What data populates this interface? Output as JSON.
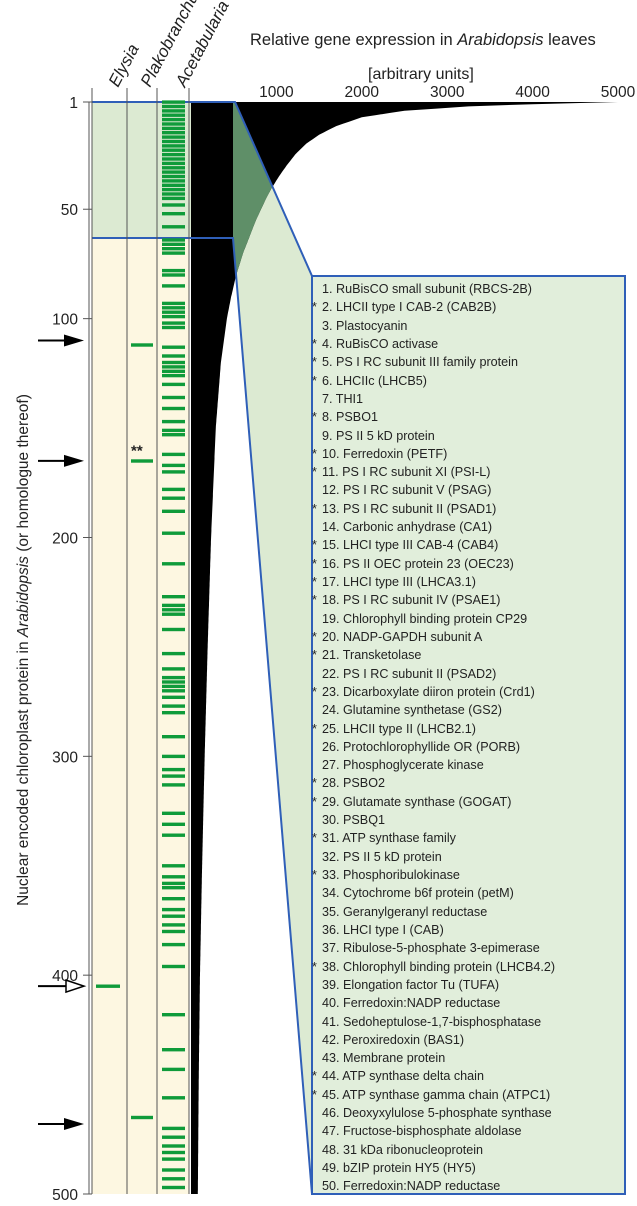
{
  "chart_data": {
    "type": "bar",
    "title": "Relative gene expression in Arabidopsis leaves",
    "title_parts": [
      "Relative gene expression in ",
      "Arabidopsis",
      " leaves"
    ],
    "units": "[arbitrary units]",
    "ylabel": "Nuclear encoded chloroplast protein in Arabidopsis (or homologue thereof)",
    "ylabel_parts": [
      "Nuclear encoded chloroplast protein in ",
      "Arabidopsis",
      " (or homologue thereof)"
    ],
    "x_ticks": [
      "1000",
      "2000",
      "3000",
      "4000",
      "5000"
    ],
    "x_tick_values": [
      1000,
      2000,
      3000,
      4000,
      5000
    ],
    "xlim": [
      0,
      5000
    ],
    "y_ticks": [
      "1",
      "50",
      "100",
      "200",
      "300",
      "400",
      "500"
    ],
    "y_tick_values": [
      1,
      50,
      100,
      200,
      300,
      400,
      500
    ],
    "ylim": [
      1,
      500
    ],
    "columns": [
      "Elysia",
      "Plakobranchus",
      "Acetabularia"
    ],
    "presence": {
      "Elysia": [
        405
      ],
      "Plakobranchus": [
        112,
        165,
        465
      ],
      "Acetabularia": [
        1,
        3,
        5,
        7,
        9,
        11,
        13,
        15,
        17,
        19,
        21,
        23,
        25,
        27,
        29,
        31,
        33,
        35,
        37,
        39,
        41,
        43,
        45,
        48,
        52,
        58,
        64,
        66,
        68,
        70,
        78,
        80,
        85,
        93,
        95,
        97,
        99,
        102,
        104,
        113,
        117,
        120,
        122,
        124,
        126,
        130,
        136,
        141,
        147,
        151,
        153,
        162,
        167,
        170,
        178,
        182,
        188,
        198,
        212,
        227,
        231,
        233,
        235,
        242,
        253,
        260,
        264,
        266,
        268,
        270,
        273,
        277,
        280,
        291,
        300,
        306,
        309,
        313,
        326,
        331,
        336,
        350,
        355,
        358,
        360,
        365,
        370,
        373,
        377,
        380,
        386,
        396,
        418,
        434,
        443,
        456,
        470,
        474,
        478,
        481,
        484,
        489,
        493,
        497
      ]
    },
    "expression_profile": {
      "rank": [
        1,
        2,
        3,
        5,
        8,
        12,
        16,
        20,
        25,
        30,
        35,
        40,
        45,
        50,
        55,
        60,
        65,
        70,
        80,
        90,
        100,
        120,
        150,
        200,
        250,
        300,
        350,
        400,
        450,
        500
      ],
      "value": [
        5000,
        4000,
        3250,
        2500,
        2000,
        1700,
        1500,
        1350,
        1220,
        1120,
        1030,
        950,
        880,
        820,
        760,
        710,
        660,
        610,
        530,
        470,
        420,
        350,
        290,
        235,
        195,
        160,
        130,
        105,
        90,
        80
      ]
    },
    "arrows": [
      {
        "rank": 110,
        "style": "filled"
      },
      {
        "rank": 165,
        "style": "filled"
      },
      {
        "rank": 405,
        "style": "open"
      },
      {
        "rank": 468,
        "style": "filled"
      }
    ],
    "marker_label": "**",
    "marker_rank": 162,
    "genes": [
      {
        "star": "",
        "label": "1. RuBisCO small subunit (RBCS-2B)"
      },
      {
        "star": "*",
        "label": "2. LHCII type I CAB-2 (CAB2B)"
      },
      {
        "star": "",
        "label": "3. Plastocyanin"
      },
      {
        "star": "*",
        "label": "4. RuBisCO activase"
      },
      {
        "star": "*",
        "label": "5. PS I RC subunit III family protein"
      },
      {
        "star": "*",
        "label": "6. LHCIIc (LHCB5)"
      },
      {
        "star": "",
        "label": "7. THI1"
      },
      {
        "star": "*",
        "label": "8. PSBO1"
      },
      {
        "star": "",
        "label": "9. PS II 5 kD protein"
      },
      {
        "star": "*",
        "label": "10. Ferredoxin (PETF)"
      },
      {
        "star": "*",
        "label": "11. PS I RC subunit XI (PSI-L)"
      },
      {
        "star": "",
        "label": "12. PS I RC subunit V (PSAG)"
      },
      {
        "star": "*",
        "label": "13. PS I RC subunit II (PSAD1)"
      },
      {
        "star": "",
        "label": "14. Carbonic anhydrase (CA1)"
      },
      {
        "star": "*",
        "label": "15. LHCI type III CAB-4 (CAB4)"
      },
      {
        "star": "*",
        "label": "16. PS II OEC protein 23 (OEC23)"
      },
      {
        "star": "*",
        "label": "17. LHCI type III (LHCA3.1)"
      },
      {
        "star": "*",
        "label": "18. PS I RC subunit IV (PSAE1)"
      },
      {
        "star": "",
        "label": "19. Chlorophyll binding protein CP29"
      },
      {
        "star": "*",
        "label": "20. NADP-GAPDH subunit A"
      },
      {
        "star": "*",
        "label": "21. Transketolase"
      },
      {
        "star": "",
        "label": "22. PS I RC subunit II (PSAD2)"
      },
      {
        "star": "*",
        "label": "23. Dicarboxylate diiron protein (Crd1)"
      },
      {
        "star": "",
        "label": "24. Glutamine synthetase (GS2)"
      },
      {
        "star": "*",
        "label": "25. LHCII type II (LHCB2.1)"
      },
      {
        "star": "",
        "label": "26. Protochlorophyllide OR (PORB)"
      },
      {
        "star": "",
        "label": "27. Phosphoglycerate kinase"
      },
      {
        "star": "*",
        "label": "28. PSBO2"
      },
      {
        "star": "*",
        "label": "29. Glutamate synthase (GOGAT)"
      },
      {
        "star": "",
        "label": "30. PSBQ1"
      },
      {
        "star": "*",
        "label": "31. ATP synthase family"
      },
      {
        "star": "",
        "label": "32. PS II 5 kD protein"
      },
      {
        "star": "*",
        "label": "33. Phosphoribulokinase"
      },
      {
        "star": "",
        "label": "34. Cytochrome b6f protein (petM)"
      },
      {
        "star": "",
        "label": "35. Geranylgeranyl reductase"
      },
      {
        "star": "",
        "label": "36. LHCI type I (CAB)"
      },
      {
        "star": "",
        "label": "37. Ribulose-5-phosphate 3-epimerase"
      },
      {
        "star": "*",
        "label": "38. Chlorophyll binding protein (LHCB4.2)"
      },
      {
        "star": "",
        "label": "39. Elongation factor Tu (TUFA)"
      },
      {
        "star": "",
        "label": "40. Ferredoxin:NADP reductase"
      },
      {
        "star": "",
        "label": "41. Sedoheptulose-1,7-bisphosphatase"
      },
      {
        "star": "",
        "label": "42. Peroxiredoxin (BAS1)"
      },
      {
        "star": "",
        "label": "43. Membrane protein"
      },
      {
        "star": "*",
        "label": "44. ATP synthase delta chain"
      },
      {
        "star": "*",
        "label": "45. ATP synthase gamma chain (ATPC1)"
      },
      {
        "star": "",
        "label": "46. Deoxyxylulose 5-phosphate synthase"
      },
      {
        "star": "",
        "label": "47. Fructose-bisphosphate aldolase"
      },
      {
        "star": "",
        "label": "48. 31 kDa ribonucleoprotein"
      },
      {
        "star": "",
        "label": "49. bZIP protein HY5 (HY5)"
      },
      {
        "star": "",
        "label": "50. Ferredoxin:NADP reductase"
      }
    ]
  },
  "colors": {
    "cream": "#fdf7e1",
    "green_shade": "#dcead2",
    "panel_fill": "#e1eedb",
    "blue_line": "#2f5fb8",
    "bar_green": "#0f9b3a",
    "dark_green": "#5f8f68",
    "black": "#000000"
  }
}
